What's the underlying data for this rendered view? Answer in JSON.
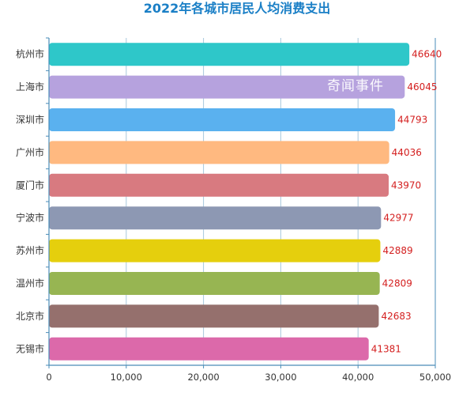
{
  "watermark": "奇闻事件",
  "chart_data": {
    "type": "bar",
    "orientation": "horizontal",
    "title": "2022年各城市居民人均消费支出",
    "categories": [
      "杭州市",
      "上海市",
      "深圳市",
      "广州市",
      "厦门市",
      "宁波市",
      "苏州市",
      "温州市",
      "北京市",
      "无锡市"
    ],
    "values": [
      46640,
      46045,
      44793,
      44036,
      43970,
      42977,
      42889,
      42809,
      42683,
      41381
    ],
    "colors": [
      "#2ec7c9",
      "#b6a2de",
      "#5ab1ef",
      "#ffb980",
      "#d87a80",
      "#8d98b3",
      "#e5cf0d",
      "#97b552",
      "#95706d",
      "#dc69aa"
    ],
    "xlim": [
      0,
      50000
    ],
    "xticks": [
      "0",
      "10,000",
      "20,000",
      "30,000",
      "40,000",
      "50,000"
    ],
    "xlabel": "",
    "ylabel": "",
    "grid": true
  }
}
